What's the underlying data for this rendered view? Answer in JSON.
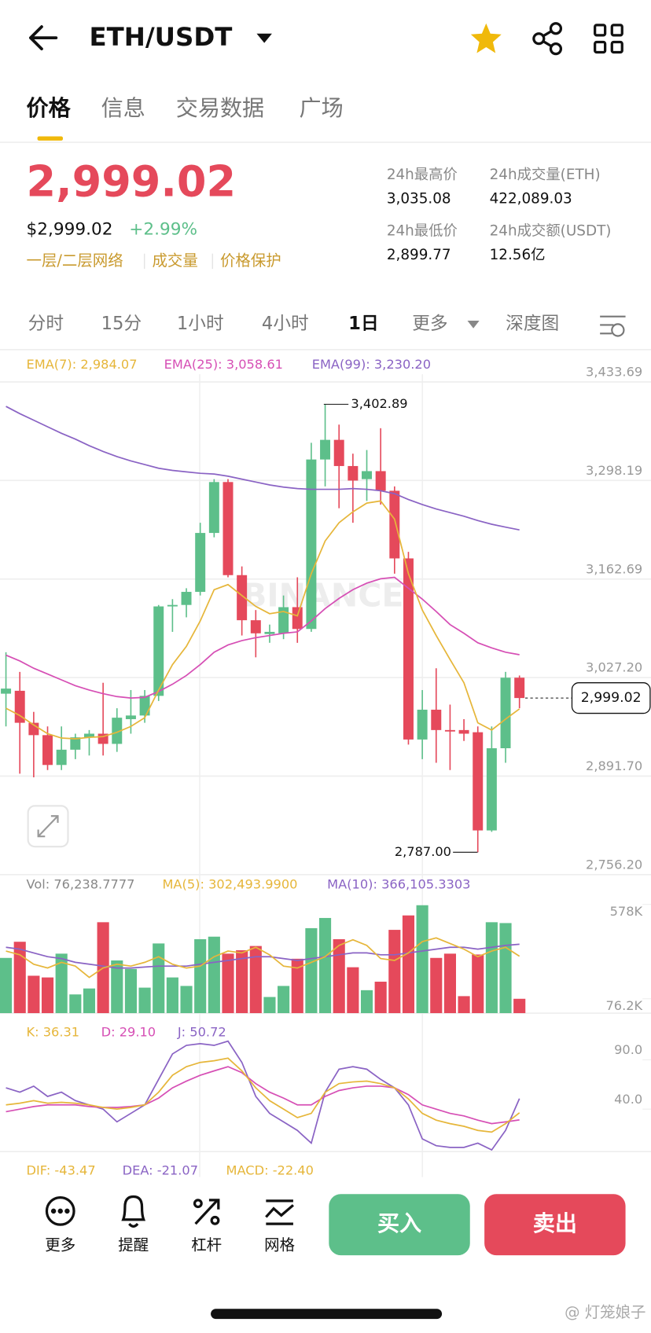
{
  "header": {
    "pair": "ETH/USDT"
  },
  "tabs": [
    "价格",
    "信息",
    "交易数据",
    "广场"
  ],
  "price": {
    "last": "2,999.02",
    "fiat": "$2,999.02",
    "change": "+2.99%",
    "tags": [
      "一层/二层网络",
      "成交量",
      "价格保护"
    ]
  },
  "stats": [
    {
      "label": "24h最高价",
      "value": "3,035.08"
    },
    {
      "label": "24h成交量(ETH)",
      "value": "422,089.03"
    },
    {
      "label": "24h最低价",
      "value": "2,899.77"
    },
    {
      "label": "24h成交额(USDT)",
      "value": "12.56亿"
    }
  ],
  "intervals": [
    "分时",
    "15分",
    "1小时",
    "4小时",
    "1日",
    "更多",
    "深度图"
  ],
  "kline": {
    "labels": [
      "EMA(7): 2,984.07",
      "EMA(25): 3,058.61",
      "EMA(99): 3,230.20"
    ],
    "watermark": "BINANCE",
    "ylim": [
      2756.2,
      3433.69
    ],
    "yticks": [
      {
        "value": 3433.69,
        "label": "3,433.69"
      },
      {
        "value": 3298.19,
        "label": "3,298.19"
      },
      {
        "value": 3162.69,
        "label": "3,162.69"
      },
      {
        "value": 3027.2,
        "label": "3,027.20"
      },
      {
        "value": 2891.7,
        "label": "2,891.70"
      },
      {
        "value": 2756.2,
        "label": "2,756.20"
      }
    ],
    "candles": [
      {
        "o": 3005,
        "h": 3062,
        "l": 2960,
        "c": 3012
      },
      {
        "o": 3009,
        "h": 3035,
        "l": 2895,
        "c": 2965
      },
      {
        "o": 2965,
        "h": 2980,
        "l": 2890,
        "c": 2948
      },
      {
        "o": 2948,
        "h": 2960,
        "l": 2900,
        "c": 2907
      },
      {
        "o": 2907,
        "h": 2960,
        "l": 2900,
        "c": 2928
      },
      {
        "o": 2928,
        "h": 2950,
        "l": 2915,
        "c": 2945
      },
      {
        "o": 2945,
        "h": 2955,
        "l": 2920,
        "c": 2950
      },
      {
        "o": 2950,
        "h": 3020,
        "l": 2920,
        "c": 2936
      },
      {
        "o": 2936,
        "h": 2985,
        "l": 2925,
        "c": 2972
      },
      {
        "o": 2970,
        "h": 3010,
        "l": 2950,
        "c": 2975
      },
      {
        "o": 2975,
        "h": 3010,
        "l": 2965,
        "c": 3002
      },
      {
        "o": 3002,
        "h": 3127,
        "l": 2995,
        "c": 3125
      },
      {
        "o": 3125,
        "h": 3135,
        "l": 3090,
        "c": 3127
      },
      {
        "o": 3127,
        "h": 3150,
        "l": 3110,
        "c": 3145
      },
      {
        "o": 3145,
        "h": 3240,
        "l": 3140,
        "c": 3226
      },
      {
        "o": 3226,
        "h": 3300,
        "l": 3220,
        "c": 3296
      },
      {
        "o": 3296,
        "h": 3300,
        "l": 3165,
        "c": 3168
      },
      {
        "o": 3168,
        "h": 3180,
        "l": 3085,
        "c": 3106
      },
      {
        "o": 3106,
        "h": 3120,
        "l": 3055,
        "c": 3088
      },
      {
        "o": 3087,
        "h": 3100,
        "l": 3075,
        "c": 3090
      },
      {
        "o": 3088,
        "h": 3140,
        "l": 3080,
        "c": 3124
      },
      {
        "o": 3124,
        "h": 3165,
        "l": 3075,
        "c": 3094
      },
      {
        "o": 3094,
        "h": 3350,
        "l": 3090,
        "c": 3327
      },
      {
        "o": 3327,
        "h": 3402.89,
        "l": 3290,
        "c": 3354
      },
      {
        "o": 3354,
        "h": 3375,
        "l": 3260,
        "c": 3318
      },
      {
        "o": 3318,
        "h": 3335,
        "l": 3240,
        "c": 3298
      },
      {
        "o": 3300,
        "h": 3340,
        "l": 3270,
        "c": 3311
      },
      {
        "o": 3311,
        "h": 3370,
        "l": 3265,
        "c": 3284
      },
      {
        "o": 3284,
        "h": 3290,
        "l": 3170,
        "c": 3191
      },
      {
        "o": 3191,
        "h": 3200,
        "l": 2935,
        "c": 2942
      },
      {
        "o": 2942,
        "h": 3010,
        "l": 2915,
        "c": 2983
      },
      {
        "o": 2983,
        "h": 3040,
        "l": 2910,
        "c": 2955
      },
      {
        "o": 2955,
        "h": 2990,
        "l": 2900,
        "c": 2953
      },
      {
        "o": 2955,
        "h": 2970,
        "l": 2940,
        "c": 2950
      },
      {
        "o": 2952,
        "h": 2960,
        "l": 2787,
        "c": 2817
      },
      {
        "o": 2817,
        "h": 2960,
        "l": 2815,
        "c": 2930
      },
      {
        "o": 2930,
        "h": 3035,
        "l": 2910,
        "c": 3027
      },
      {
        "o": 3027,
        "h": 3030,
        "l": 2985,
        "c": 2999.02
      }
    ],
    "ema7": [
      2985,
      2975,
      2962,
      2950,
      2944,
      2943,
      2945,
      2946,
      2952,
      2960,
      2972,
      3010,
      3045,
      3070,
      3105,
      3148,
      3155,
      3140,
      3125,
      3115,
      3118,
      3112,
      3170,
      3215,
      3240,
      3255,
      3267,
      3270,
      3245,
      3170,
      3120,
      3085,
      3052,
      3020,
      2965,
      2955,
      2970,
      2984.07
    ],
    "ema25": [
      3058,
      3050,
      3040,
      3032,
      3024,
      3016,
      3010,
      3005,
      3001,
      2999,
      3000,
      3008,
      3018,
      3030,
      3045,
      3062,
      3072,
      3078,
      3082,
      3085,
      3088,
      3090,
      3105,
      3122,
      3136,
      3148,
      3157,
      3163,
      3165,
      3150,
      3135,
      3118,
      3100,
      3088,
      3075,
      3068,
      3062,
      3058.61
    ],
    "ema99": [
      3400,
      3390,
      3381,
      3372,
      3363,
      3355,
      3346,
      3338,
      3331,
      3325,
      3320,
      3315,
      3312,
      3310,
      3308,
      3307,
      3304,
      3300,
      3296,
      3292,
      3289,
      3287,
      3286,
      3286,
      3286,
      3287,
      3286,
      3284,
      3280,
      3272,
      3265,
      3259,
      3254,
      3249,
      3243,
      3238,
      3234,
      3230.2
    ],
    "high": {
      "value": 3402.89,
      "label": "3,402.89"
    },
    "low": {
      "value": 2787.0,
      "label": "2,787.00"
    },
    "last": {
      "value": 2999.02,
      "label": "2,999.02"
    }
  },
  "volume": {
    "labels": [
      "Vol: 76,238.7777",
      "MA(5): 302,493.9900",
      "MA(10): 366,105.3303"
    ],
    "ylim": [
      0,
      578000
    ],
    "yticks": [
      {
        "value": 578000,
        "label": "578K"
      },
      {
        "value": 76200,
        "label": "76.2K"
      }
    ],
    "values": [
      293500,
      379300,
      198700,
      189700,
      316100,
      99400,
      131000,
      483200,
      280000,
      234800,
      135500,
      370300,
      189700,
      144500,
      392900,
      406400,
      316100,
      334200,
      356800,
      85800,
      144500,
      289000,
      451600,
      505800,
      392900,
      243900,
      121900,
      167100,
      442600,
      519300,
      573500,
      293500,
      316100,
      90300,
      311600,
      483200,
      478700,
      76238.7777
    ],
    "ma5": [
      330000,
      310000,
      260000,
      240000,
      270000,
      250000,
      190000,
      240000,
      260000,
      250000,
      270000,
      300000,
      260000,
      240000,
      250000,
      300000,
      330000,
      320000,
      350000,
      310000,
      250000,
      240000,
      270000,
      300000,
      360000,
      390000,
      360000,
      290000,
      280000,
      320000,
      380000,
      400000,
      370000,
      340000,
      300000,
      330000,
      350000,
      302493.99
    ],
    "ma10": [
      350000,
      340000,
      320000,
      300000,
      290000,
      270000,
      260000,
      250000,
      240000,
      240000,
      245000,
      250000,
      250000,
      250000,
      260000,
      270000,
      280000,
      290000,
      300000,
      300000,
      290000,
      280000,
      290000,
      300000,
      310000,
      320000,
      320000,
      310000,
      310000,
      320000,
      330000,
      340000,
      350000,
      350000,
      340000,
      350000,
      360000,
      366105.33
    ]
  },
  "kdj": {
    "labels": [
      "K: 36.31",
      "D: 29.10",
      "J: 50.72"
    ],
    "ylim": [
      -3.1,
      130.5
    ],
    "yticks": [
      {
        "value": 90,
        "label": "90.0"
      },
      {
        "value": 40,
        "label": "40.0"
      }
    ],
    "k": [
      44.3,
      46,
      48.6,
      46,
      46.9,
      46,
      44.3,
      41.7,
      40,
      41.7,
      44.3,
      57.2,
      74.4,
      83.1,
      87.4,
      89.1,
      91.7,
      78.8,
      61.6,
      48.6,
      40,
      31.4,
      35.7,
      57.2,
      65.9,
      67.6,
      68.4,
      65.9,
      61.6,
      50.3,
      35.7,
      28.8,
      25.3,
      22.6,
      18.4,
      16.7,
      25.3,
      36.31
    ],
    "d": [
      37.4,
      40,
      42.6,
      44.3,
      44.3,
      44.3,
      42.6,
      41.7,
      41.7,
      42.6,
      44.3,
      51.2,
      61.6,
      68.4,
      74.4,
      78.8,
      83.1,
      77,
      65.9,
      57.2,
      51.2,
      44.3,
      44.3,
      52.9,
      58.9,
      61.6,
      63.3,
      63.3,
      61.6,
      54.7,
      44.3,
      40,
      35.7,
      33.1,
      28.8,
      25.3,
      27.1,
      29.1
    ],
    "j": [
      61.6,
      57.2,
      63.3,
      52.9,
      57.2,
      48.6,
      44.3,
      40,
      27.1,
      35.7,
      44.3,
      70.2,
      96,
      104.7,
      106.4,
      104.7,
      109,
      87.4,
      52.9,
      35.7,
      27.1,
      18.4,
      5.5,
      57.2,
      80.5,
      83.1,
      80.5,
      70.2,
      61.6,
      44.3,
      9.8,
      2.9,
      1.2,
      1.2,
      5.5,
      -1.4,
      18.4,
      50.72
    ]
  },
  "macd": {
    "labels": [
      "DIF: -43.47",
      "DEA: -21.07",
      "MACD: -22.40"
    ]
  },
  "actions": [
    "更多",
    "提醒",
    "杠杆",
    "网格"
  ],
  "buttons": [
    "买入",
    "卖出"
  ],
  "credit": "@ 灯笼娘子"
}
